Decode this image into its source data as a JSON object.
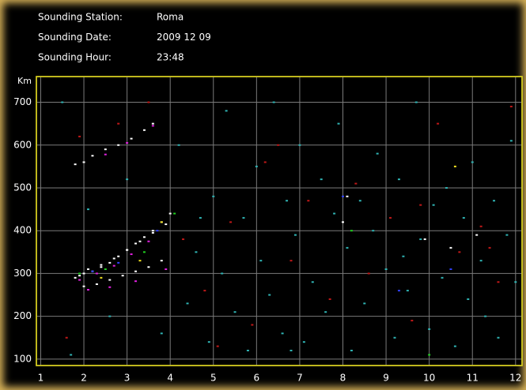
{
  "chart_data": {
    "type": "scatter",
    "info": [
      {
        "label": "Sounding Station:",
        "value": "Roma"
      },
      {
        "label": "Sounding Date:",
        "value": "2009 12 09"
      },
      {
        "label": "Sounding Hour:",
        "value": "23:48"
      }
    ],
    "ylabel": "Km",
    "xlim": [
      0.9,
      12.15
    ],
    "ylim": [
      85,
      760
    ],
    "xticks": [
      1,
      2,
      3,
      4,
      5,
      6,
      7,
      8,
      9,
      10,
      11,
      12
    ],
    "yticks": [
      100,
      200,
      300,
      400,
      500,
      600,
      700
    ],
    "grid": true,
    "series": [
      {
        "color": "#2fb3b3",
        "x": [
          1.5,
          1.7,
          2.1,
          2.6,
          3.0,
          3.8,
          4.2,
          4.4,
          4.6,
          4.9,
          5.0,
          5.2,
          5.3,
          5.5,
          5.7,
          5.8,
          6.0,
          6.1,
          6.3,
          6.4,
          6.6,
          6.7,
          6.9,
          7.0,
          7.1,
          7.3,
          7.5,
          7.6,
          7.8,
          7.9,
          8.1,
          8.2,
          8.4,
          8.5,
          8.7,
          8.8,
          9.0,
          9.2,
          9.3,
          9.5,
          9.7,
          9.8,
          10.0,
          10.1,
          10.3,
          10.4,
          10.6,
          10.8,
          10.9,
          11.0,
          11.2,
          11.3,
          11.5,
          11.6,
          11.8,
          11.9,
          12.0,
          4.7,
          6.8,
          9.4
        ],
        "values": [
          700,
          110,
          450,
          200,
          520,
          160,
          600,
          230,
          350,
          140,
          480,
          300,
          680,
          210,
          430,
          120,
          550,
          330,
          250,
          700,
          160,
          470,
          390,
          600,
          140,
          280,
          520,
          210,
          440,
          650,
          360,
          120,
          470,
          230,
          400,
          580,
          310,
          150,
          520,
          260,
          700,
          380,
          170,
          460,
          290,
          500,
          130,
          430,
          240,
          560,
          330,
          200,
          470,
          150,
          390,
          610,
          280,
          430,
          120,
          340
        ]
      },
      {
        "color": "#c01818",
        "x": [
          1.6,
          1.9,
          2.8,
          3.5,
          4.3,
          4.8,
          5.4,
          5.9,
          6.2,
          6.8,
          7.2,
          7.7,
          8.3,
          8.6,
          9.1,
          9.6,
          10.2,
          10.7,
          11.2,
          11.6,
          11.9,
          5.1,
          6.5,
          9.8,
          11.4
        ],
        "values": [
          150,
          620,
          650,
          700,
          380,
          260,
          420,
          180,
          560,
          330,
          470,
          240,
          510,
          300,
          430,
          190,
          650,
          350,
          410,
          280,
          690,
          130,
          600,
          460,
          360
        ]
      },
      {
        "color": "#ffffff",
        "x": [
          1.8,
          2.0,
          2.2,
          2.4,
          2.6,
          2.8,
          3.0,
          3.2,
          3.4,
          3.6,
          3.8,
          4.0,
          2.0,
          2.3,
          2.6,
          2.9,
          3.2,
          3.5,
          3.8,
          1.8,
          2.0,
          2.2,
          2.5,
          2.8,
          3.1,
          3.4,
          3.6,
          1.9,
          2.1,
          2.4,
          2.7,
          3.0,
          3.3,
          3.6,
          3.9,
          8.0,
          8.1,
          9.9,
          10.5,
          11.1
        ],
        "values": [
          290,
          300,
          305,
          315,
          325,
          340,
          355,
          370,
          385,
          400,
          420,
          440,
          270,
          275,
          285,
          295,
          305,
          315,
          330,
          555,
          560,
          575,
          590,
          600,
          615,
          635,
          650,
          295,
          310,
          320,
          335,
          355,
          375,
          395,
          415,
          420,
          480,
          380,
          360,
          390
        ]
      },
      {
        "color": "#e020e0",
        "x": [
          1.9,
          2.3,
          2.7,
          3.1,
          3.5,
          2.1,
          2.6,
          3.2,
          3.9,
          2.5,
          3.0,
          3.6
        ],
        "values": [
          285,
          300,
          318,
          345,
          375,
          262,
          268,
          282,
          310,
          578,
          605,
          645
        ]
      },
      {
        "color": "#20d020",
        "x": [
          1.9,
          2.5,
          3.4,
          4.1,
          10.0,
          8.2
        ],
        "values": [
          300,
          310,
          350,
          440,
          110,
          400
        ]
      },
      {
        "color": "#3040ff",
        "x": [
          2.2,
          2.8,
          3.7,
          8.0,
          10.5,
          9.3
        ],
        "values": [
          305,
          325,
          400,
          480,
          310,
          260
        ]
      },
      {
        "color": "#f0e020",
        "x": [
          2.4,
          3.3,
          3.8,
          10.6
        ],
        "values": [
          290,
          330,
          420,
          550
        ]
      }
    ]
  }
}
